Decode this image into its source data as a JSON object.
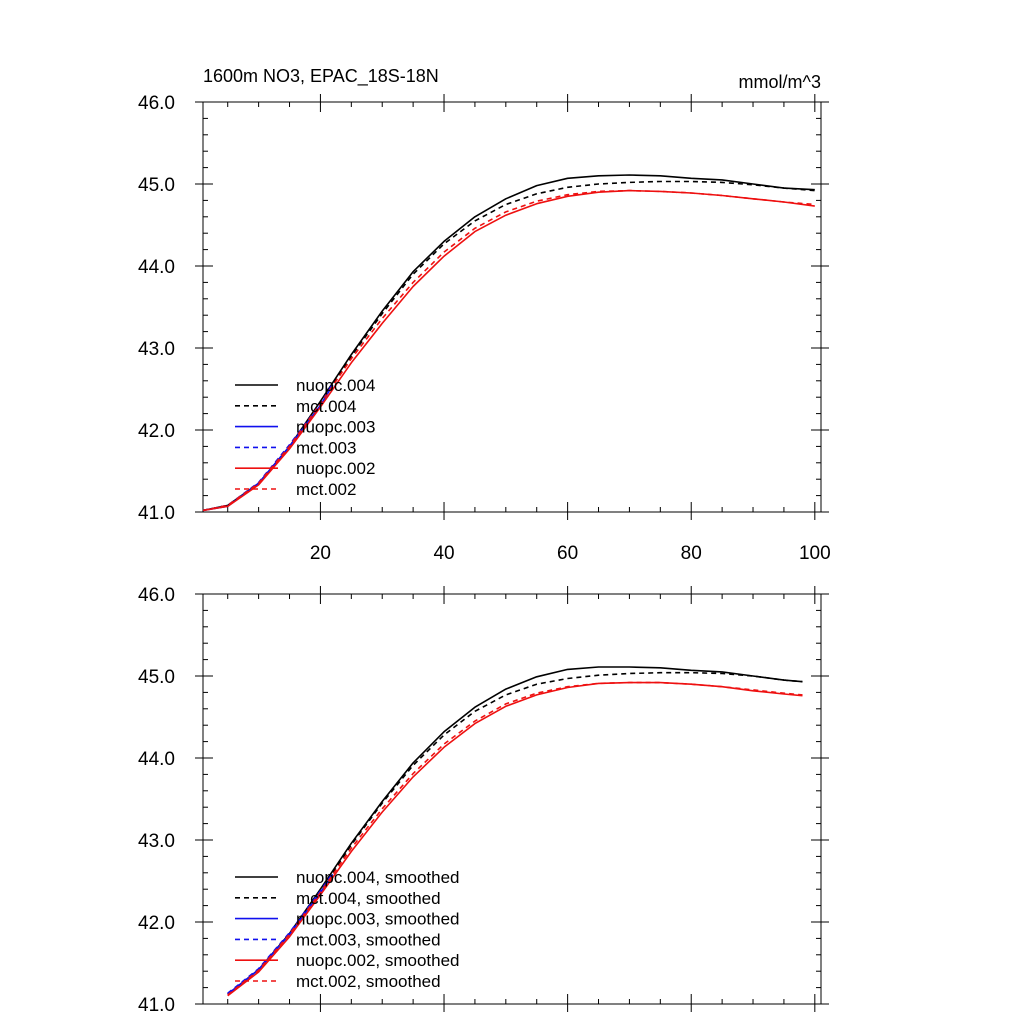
{
  "chart_data": [
    {
      "type": "line",
      "title": "1600m NO3, EPAC_18S-18N",
      "units": "mmol/m^3",
      "xlabel": "",
      "ylabel": "",
      "xlim": [
        1,
        101
      ],
      "ylim": [
        41.0,
        46.0
      ],
      "x_ticks": [
        20,
        40,
        60,
        80,
        100
      ],
      "x_tick_labels": [
        "20",
        "40",
        "60",
        "80",
        "100"
      ],
      "y_ticks": [
        41.0,
        42.0,
        43.0,
        44.0,
        45.0,
        46.0
      ],
      "y_tick_labels": [
        "41.0",
        "42.0",
        "43.0",
        "44.0",
        "45.0",
        "46.0"
      ],
      "legend_position": "bottom-left",
      "series": [
        {
          "name": "nuopc.004",
          "color": "#000000",
          "dash": "solid",
          "x": [
            1,
            5,
            10,
            15,
            20,
            25,
            30,
            35,
            40,
            45,
            50,
            55,
            60,
            65,
            70,
            75,
            80,
            85,
            90,
            95,
            100
          ],
          "values": [
            41.02,
            41.08,
            41.35,
            41.8,
            42.35,
            42.92,
            43.45,
            43.93,
            44.3,
            44.6,
            44.82,
            44.98,
            45.07,
            45.1,
            45.11,
            45.1,
            45.07,
            45.05,
            45.0,
            44.95,
            44.93
          ]
        },
        {
          "name": "mct.004",
          "color": "#000000",
          "dash": "dashed",
          "x": [
            1,
            5,
            10,
            15,
            20,
            25,
            30,
            35,
            40,
            45,
            50,
            55,
            60,
            65,
            70,
            75,
            80,
            85,
            90,
            95,
            100
          ],
          "values": [
            41.02,
            41.08,
            41.35,
            41.8,
            42.33,
            42.9,
            43.42,
            43.9,
            44.27,
            44.55,
            44.75,
            44.88,
            44.96,
            45.0,
            45.02,
            45.03,
            45.03,
            45.02,
            44.99,
            44.95,
            44.92
          ]
        },
        {
          "name": "nuopc.003",
          "color": "#1010ee",
          "dash": "solid",
          "x": [
            1,
            5,
            10,
            15,
            20,
            22
          ],
          "values": [
            41.02,
            41.07,
            41.35,
            41.8,
            42.3,
            42.55
          ]
        },
        {
          "name": "mct.003",
          "color": "#1010ee",
          "dash": "dashed",
          "x": [
            1,
            5,
            10,
            15,
            20,
            22
          ],
          "values": [
            41.02,
            41.08,
            41.36,
            41.82,
            42.32,
            42.57
          ]
        },
        {
          "name": "nuopc.002",
          "color": "#ee1010",
          "dash": "solid",
          "x": [
            1,
            5,
            10,
            15,
            20,
            25,
            30,
            35,
            40,
            45,
            50,
            55,
            60,
            65,
            70,
            75,
            80,
            85,
            90,
            95,
            100
          ],
          "values": [
            41.02,
            41.07,
            41.33,
            41.77,
            42.28,
            42.82,
            43.3,
            43.75,
            44.12,
            44.42,
            44.62,
            44.76,
            44.85,
            44.9,
            44.92,
            44.91,
            44.89,
            44.86,
            44.82,
            44.78,
            44.73
          ]
        },
        {
          "name": "mct.002",
          "color": "#ee1010",
          "dash": "dashed",
          "x": [
            1,
            5,
            10,
            15,
            20,
            25,
            30,
            35,
            40,
            45,
            50,
            55,
            60,
            65,
            70,
            75,
            80,
            85,
            90,
            95,
            100
          ],
          "values": [
            41.02,
            41.08,
            41.35,
            41.8,
            42.32,
            42.87,
            43.36,
            43.8,
            44.17,
            44.46,
            44.66,
            44.79,
            44.87,
            44.91,
            44.92,
            44.91,
            44.89,
            44.86,
            44.82,
            44.78,
            44.75
          ]
        }
      ]
    },
    {
      "type": "line",
      "title": "",
      "xlabel": "",
      "ylabel": "",
      "xlim": [
        1,
        101
      ],
      "ylim": [
        41.0,
        46.0
      ],
      "x_ticks": [
        20,
        40,
        60,
        80,
        100
      ],
      "x_tick_labels": [],
      "y_ticks": [
        41.0,
        42.0,
        43.0,
        44.0,
        45.0,
        46.0
      ],
      "y_tick_labels": [
        "41.0",
        "42.0",
        "43.0",
        "44.0",
        "45.0",
        "46.0"
      ],
      "legend_position": "bottom-left",
      "series": [
        {
          "name": "nuopc.004, smoothed",
          "color": "#000000",
          "dash": "solid",
          "x": [
            5,
            10,
            15,
            20,
            25,
            30,
            35,
            40,
            45,
            50,
            55,
            60,
            65,
            70,
            75,
            80,
            85,
            90,
            95,
            98
          ],
          "values": [
            41.12,
            41.42,
            41.86,
            42.4,
            42.96,
            43.47,
            43.94,
            44.32,
            44.62,
            44.84,
            44.99,
            45.08,
            45.11,
            45.11,
            45.1,
            45.07,
            45.05,
            45.0,
            44.95,
            44.93
          ]
        },
        {
          "name": "mct.004, smoothed",
          "color": "#000000",
          "dash": "dashed",
          "x": [
            5,
            10,
            15,
            20,
            25,
            30,
            35,
            40,
            45,
            50,
            55,
            60,
            65,
            70,
            75,
            80,
            85,
            90,
            95,
            98
          ],
          "values": [
            41.12,
            41.42,
            41.86,
            42.38,
            42.94,
            43.45,
            43.91,
            44.28,
            44.57,
            44.77,
            44.9,
            44.97,
            45.01,
            45.03,
            45.04,
            45.04,
            45.03,
            45.0,
            44.95,
            44.93
          ]
        },
        {
          "name": "nuopc.003, smoothed",
          "color": "#1010ee",
          "dash": "solid",
          "x": [
            5,
            10,
            15,
            20,
            22
          ],
          "values": [
            41.12,
            41.42,
            41.85,
            42.36,
            42.58
          ]
        },
        {
          "name": "mct.003, smoothed",
          "color": "#1010ee",
          "dash": "dashed",
          "x": [
            5,
            10,
            15,
            20,
            22
          ],
          "values": [
            41.13,
            41.43,
            41.87,
            42.38,
            42.6
          ]
        },
        {
          "name": "nuopc.002, smoothed",
          "color": "#ee1010",
          "dash": "solid",
          "x": [
            5,
            10,
            15,
            20,
            25,
            30,
            35,
            40,
            45,
            50,
            55,
            60,
            65,
            70,
            75,
            80,
            85,
            90,
            95,
            98
          ],
          "values": [
            41.1,
            41.39,
            41.82,
            42.33,
            42.86,
            43.34,
            43.77,
            44.13,
            44.42,
            44.63,
            44.77,
            44.86,
            44.91,
            44.92,
            44.92,
            44.9,
            44.87,
            44.82,
            44.78,
            44.76
          ]
        },
        {
          "name": "mct.002, smoothed",
          "color": "#ee1010",
          "dash": "dashed",
          "x": [
            5,
            10,
            15,
            20,
            25,
            30,
            35,
            40,
            45,
            50,
            55,
            60,
            65,
            70,
            75,
            80,
            85,
            90,
            95,
            98
          ],
          "values": [
            41.11,
            41.41,
            41.85,
            42.36,
            42.9,
            43.38,
            43.81,
            44.17,
            44.45,
            44.66,
            44.79,
            44.87,
            44.91,
            44.92,
            44.92,
            44.9,
            44.87,
            44.83,
            44.79,
            44.77
          ]
        }
      ]
    }
  ]
}
